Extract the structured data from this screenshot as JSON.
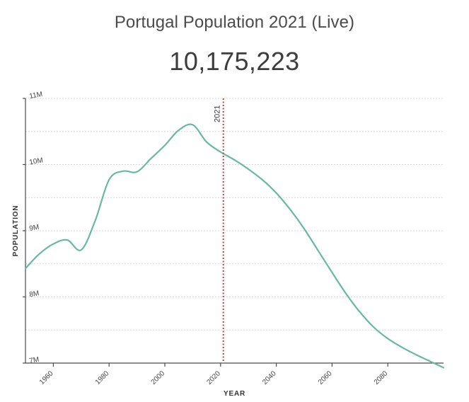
{
  "header": {
    "title": "Portugal Population 2021 (Live)",
    "population": "10,175,223"
  },
  "chart_data": {
    "type": "line",
    "title": "Portugal Population 2021 (Live)",
    "xlabel": "YEAR",
    "ylabel": "POPULATION",
    "xlim": [
      1950,
      2100
    ],
    "ylim": [
      7000000,
      11000000
    ],
    "grid": true,
    "y_ticks": [
      {
        "value": 7000000,
        "label": "7M"
      },
      {
        "value": 8000000,
        "label": "8M"
      },
      {
        "value": 9000000,
        "label": "9M"
      },
      {
        "value": 10000000,
        "label": "10M"
      },
      {
        "value": 11000000,
        "label": "11M"
      }
    ],
    "minor_grid_values": [
      7500000,
      8500000,
      9500000,
      10500000
    ],
    "x_ticks": [
      1960,
      1980,
      2000,
      2020,
      2040,
      2060,
      2080
    ],
    "marker": {
      "year": 2021,
      "label": "2021"
    },
    "series": [
      {
        "color": "#67b9a4",
        "x": [
          1950,
          1955,
          1960,
          1965,
          1970,
          1975,
          1980,
          1985,
          1990,
          1995,
          2000,
          2005,
          2010,
          2015,
          2020,
          2025,
          2030,
          2035,
          2040,
          2045,
          2050,
          2055,
          2060,
          2065,
          2070,
          2075,
          2080,
          2085,
          2090,
          2095,
          2100
        ],
        "y": [
          8430000,
          8650000,
          8800000,
          8860000,
          8710000,
          9150000,
          9770000,
          9900000,
          9890000,
          10090000,
          10290000,
          10520000,
          10600000,
          10340000,
          10190000,
          10070000,
          9930000,
          9770000,
          9570000,
          9320000,
          9030000,
          8700000,
          8370000,
          8050000,
          7770000,
          7540000,
          7370000,
          7240000,
          7130000,
          7030000,
          6930000
        ]
      }
    ]
  }
}
